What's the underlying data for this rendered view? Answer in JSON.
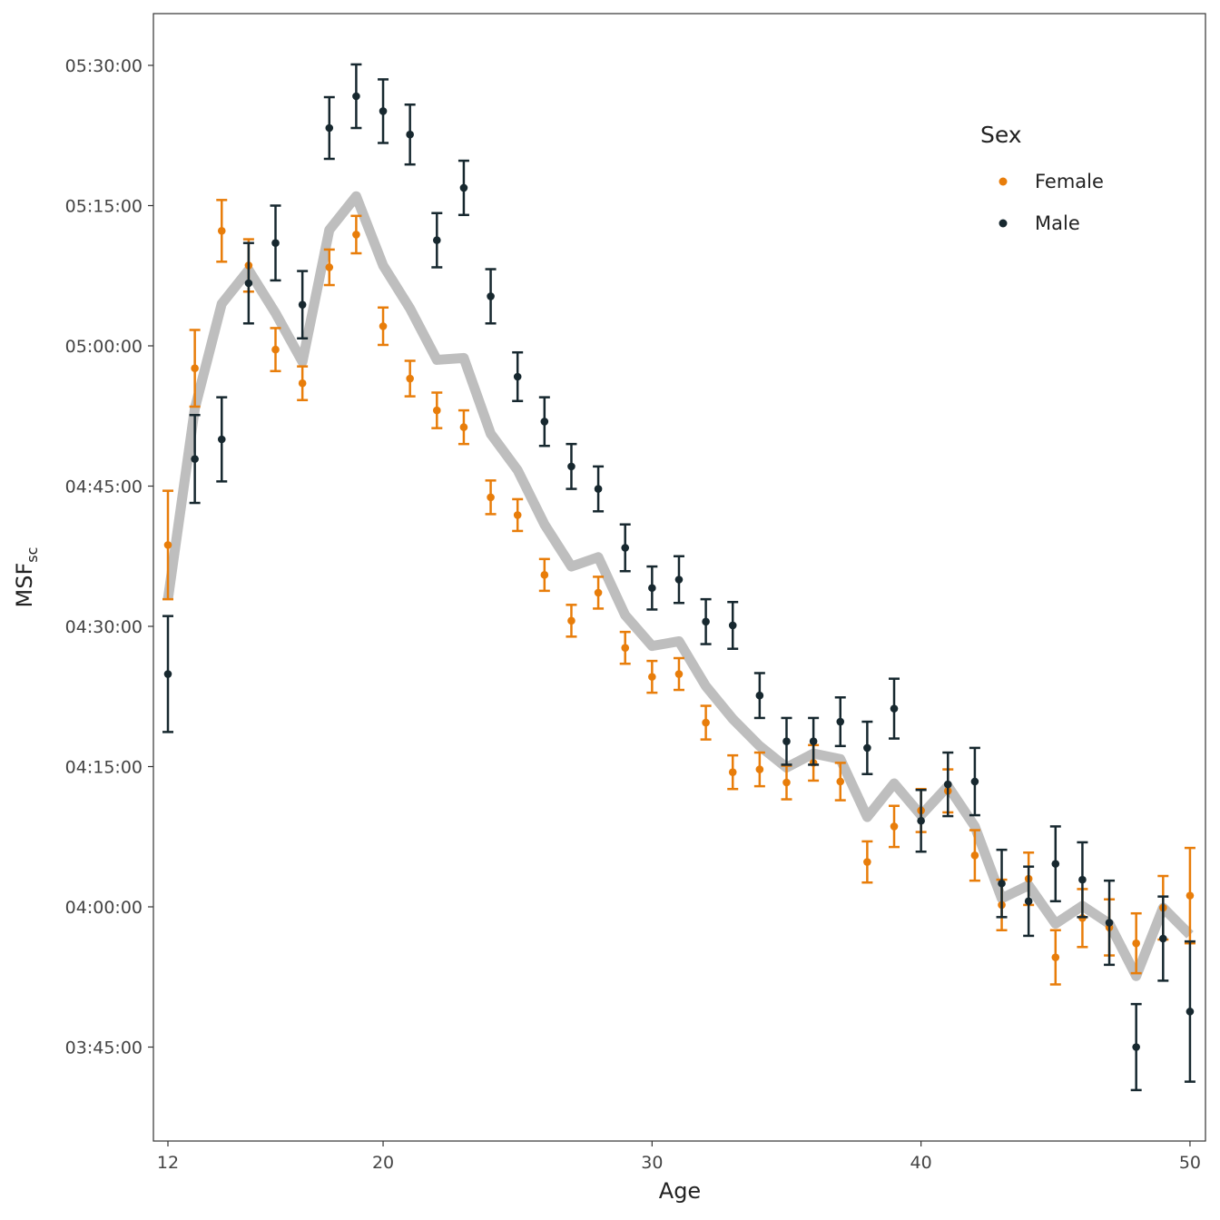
{
  "chart_data": {
    "type": "scatter",
    "title": "",
    "xlabel": "Age",
    "ylabel_main": "MSF",
    "ylabel_sub": "sc",
    "y_units": "minutes since midnight",
    "xlim": [
      11.5,
      50.5
    ],
    "ylim": [
      219.5,
      335.5
    ],
    "x_ticks": [
      12,
      20,
      30,
      40,
      50
    ],
    "y_ticks": [
      {
        "value": 225,
        "label": "03:45:00"
      },
      {
        "value": 240,
        "label": "04:00:00"
      },
      {
        "value": 255,
        "label": "04:15:00"
      },
      {
        "value": 270,
        "label": "04:30:00"
      },
      {
        "value": 285,
        "label": "04:45:00"
      },
      {
        "value": 300,
        "label": "05:00:00"
      },
      {
        "value": 315,
        "label": "05:15:00"
      },
      {
        "value": 330,
        "label": "05:30:00"
      }
    ],
    "grid": false,
    "legend": {
      "title": "Sex",
      "placement": "top-right"
    },
    "x": [
      12,
      13,
      14,
      15,
      16,
      17,
      18,
      19,
      20,
      21,
      22,
      23,
      24,
      25,
      26,
      27,
      28,
      29,
      30,
      31,
      32,
      33,
      34,
      35,
      36,
      37,
      38,
      39,
      40,
      41,
      42,
      43,
      44,
      45,
      46,
      47,
      48,
      49,
      50
    ],
    "series": [
      {
        "name": "Female",
        "color": "#E87D0A",
        "values": [
          278.7,
          297.6,
          312.3,
          308.6,
          299.6,
          296.0,
          308.4,
          311.9,
          302.1,
          296.5,
          293.1,
          291.3,
          283.8,
          281.9,
          275.5,
          270.6,
          273.6,
          267.7,
          264.6,
          264.9,
          259.7,
          254.4,
          254.7,
          253.3,
          255.4,
          253.4,
          244.8,
          248.6,
          250.3,
          252.4,
          245.5,
          240.2,
          243.0,
          234.6,
          238.8,
          237.8,
          236.1,
          239.9,
          241.2
        ],
        "se": [
          5.8,
          4.1,
          3.3,
          2.8,
          2.3,
          1.8,
          1.9,
          2.0,
          2.0,
          1.9,
          1.9,
          1.8,
          1.8,
          1.7,
          1.7,
          1.7,
          1.7,
          1.7,
          1.7,
          1.7,
          1.8,
          1.8,
          1.8,
          1.8,
          1.9,
          2.0,
          2.2,
          2.2,
          2.3,
          2.3,
          2.7,
          2.7,
          2.8,
          2.9,
          3.1,
          3.0,
          3.2,
          3.4,
          5.1
        ]
      },
      {
        "name": "Male",
        "color": "#17282F",
        "values": [
          264.9,
          287.9,
          290.0,
          306.7,
          311.0,
          304.4,
          323.3,
          326.7,
          325.1,
          322.6,
          311.3,
          316.9,
          305.3,
          296.7,
          291.9,
          287.1,
          284.7,
          278.4,
          274.1,
          275.0,
          270.5,
          270.1,
          262.6,
          257.7,
          257.7,
          259.8,
          257.0,
          261.2,
          249.2,
          253.1,
          253.4,
          242.5,
          240.6,
          244.6,
          242.9,
          238.3,
          225.0,
          236.6,
          228.8
        ],
        "se": [
          6.2,
          4.7,
          4.5,
          4.3,
          4.0,
          3.6,
          3.3,
          3.4,
          3.4,
          3.2,
          2.9,
          2.9,
          2.9,
          2.6,
          2.6,
          2.4,
          2.4,
          2.5,
          2.3,
          2.5,
          2.4,
          2.5,
          2.4,
          2.5,
          2.5,
          2.6,
          2.8,
          3.2,
          3.3,
          3.4,
          3.6,
          3.6,
          3.7,
          4.0,
          4.0,
          4.5,
          4.6,
          4.5,
          7.5
        ]
      }
    ],
    "overall_line": {
      "color": "#BEBEBE",
      "values": [
        272.9,
        293.3,
        304.5,
        308.1,
        303.5,
        298.3,
        312.4,
        316.0,
        308.6,
        304.0,
        298.5,
        298.7,
        290.6,
        286.7,
        280.9,
        276.4,
        277.4,
        271.2,
        267.9,
        268.4,
        263.6,
        260.1,
        257.2,
        254.9,
        256.4,
        255.8,
        249.6,
        253.2,
        249.8,
        252.9,
        248.6,
        240.9,
        242.3,
        238.2,
        240.1,
        238.2,
        232.6,
        239.9,
        237.0
      ]
    }
  }
}
